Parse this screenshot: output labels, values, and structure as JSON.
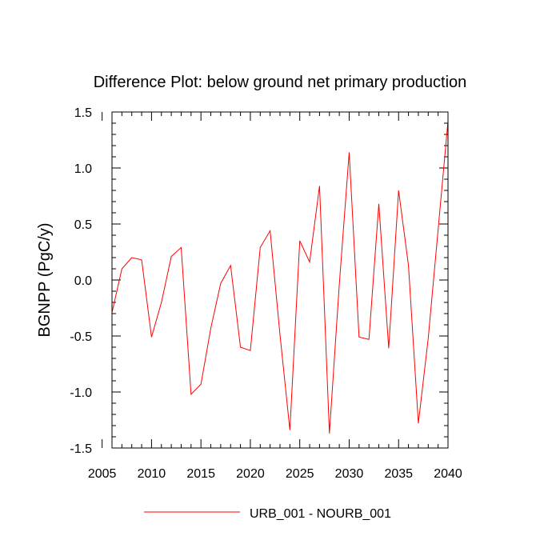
{
  "chart_data": {
    "type": "line",
    "title": "Difference Plot: below ground net primary production",
    "xlabel": "",
    "ylabel": "BGNPP  (PgC/y)",
    "xlim": [
      2006,
      2040
    ],
    "ylim": [
      -1.5,
      1.5
    ],
    "xticks": [
      2005,
      2010,
      2015,
      2020,
      2025,
      2030,
      2035,
      2040
    ],
    "yticks": [
      -1.5,
      -1.0,
      -0.5,
      0.0,
      0.5,
      1.0,
      1.5
    ],
    "x_tick_labels": [
      "2005",
      "2010",
      "2015",
      "2020",
      "2025",
      "2030",
      "2035",
      "2040"
    ],
    "y_tick_labels": [
      "-1.5",
      "-1.0",
      "-0.5",
      "0.0",
      "0.5",
      "1.0",
      "1.5"
    ],
    "grid": false,
    "legend_position": "bottom-center",
    "series": [
      {
        "name": "URB_001 - NOURB_001",
        "color": "#ff0000",
        "x": [
          2006,
          2007,
          2008,
          2009,
          2010,
          2011,
          2012,
          2013,
          2014,
          2015,
          2016,
          2017,
          2018,
          2019,
          2020,
          2021,
          2022,
          2023,
          2024,
          2025,
          2026,
          2027,
          2028,
          2029,
          2030,
          2031,
          2032,
          2033,
          2034,
          2035,
          2036,
          2037,
          2038,
          2039,
          2040
        ],
        "values": [
          -0.29,
          0.1,
          0.2,
          0.18,
          -0.51,
          -0.2,
          0.21,
          0.29,
          -1.02,
          -0.93,
          -0.43,
          -0.03,
          0.13,
          -0.6,
          -0.63,
          0.29,
          0.44,
          -0.49,
          -1.34,
          0.35,
          0.16,
          0.84,
          -1.37,
          -0.04,
          1.14,
          -0.51,
          -0.53,
          0.68,
          -0.61,
          0.8,
          0.13,
          -1.28,
          -0.52,
          0.45,
          1.42
        ]
      }
    ]
  }
}
